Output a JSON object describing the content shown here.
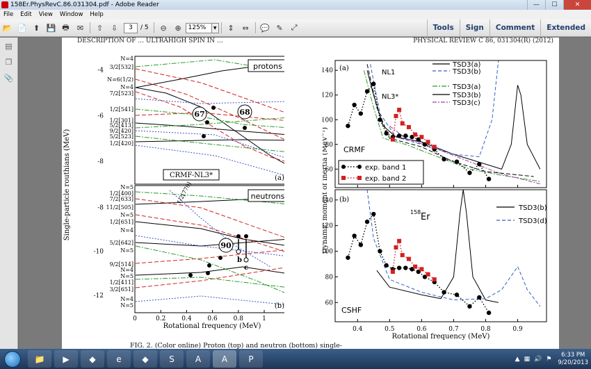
{
  "window": {
    "title": "158Er.PhysRevC.86.031304.pdf - Adobe Reader",
    "min": "—",
    "max": "☐",
    "close": "✕"
  },
  "menu": [
    "File",
    "Edit",
    "View",
    "Window",
    "Help"
  ],
  "toolbar": {
    "page_current": "3",
    "page_total": "/ 5",
    "zoom": "125%",
    "tools": "Tools",
    "sign": "Sign",
    "comment": "Comment",
    "extended": "Extended"
  },
  "document": {
    "header_left": "DESCRIPTION OF ... ULTRAHIGH SPIN IN ...",
    "header_right": "PHYSICAL REVIEW C 86, 031304(R) (2012)",
    "caption": "FIG. 2. (Color online) Proton (top) and neutron (bottom) single-",
    "left": {
      "ylabel": "Single-particle routhians (MeV)",
      "xlabel": "Rotational frequency (MeV)",
      "xticks": [
        "0",
        "0.2",
        "0.4",
        "0.6",
        "0.8",
        "1"
      ],
      "yticks_top": [
        "-4",
        "-6",
        "-8"
      ],
      "yticks_bottom": [
        "-8",
        "-10",
        "-12"
      ],
      "protons_label": "protons",
      "neutrons_label": "neutrons",
      "model_label": "CRMF-NL3*",
      "panel_a": "(a)",
      "panel_b": "(b)",
      "circle_67": "67",
      "circle_68": "68",
      "circle_90": "90",
      "arrow_b": "b",
      "arrow_c": "c",
      "level_labels_top": [
        "N=4",
        "3/2[532]",
        "N=6(1/2)",
        "N=4",
        "7/2[523]",
        "1/2[541]",
        "1/2[301]",
        "5/2[413]",
        "9/2[420]",
        "5/2[523]",
        "1/2[420]"
      ],
      "level_labels_bottom": [
        "N=5",
        "1/2[400]",
        "7/2[633]",
        "11/2[505]",
        "N=5",
        "1/2[651]",
        "N=4",
        "5/2[642]",
        "N=5",
        "9/2[514]",
        "N=4",
        "N=5",
        "1/2[411]",
        "3/2[651]",
        "N=4",
        "N=5"
      ],
      "diag_label": "1/2[770]"
    },
    "right": {
      "ylabel": "Dynamic moment of inertia (MeV⁻¹)",
      "xlabel": "Rotational frequency (MeV)",
      "xticks": [
        "0.4",
        "0.5",
        "0.6",
        "0.7",
        "0.8",
        "0.9"
      ],
      "yticks_top": [
        "140",
        "120",
        "100",
        "80",
        "60"
      ],
      "yticks_bottom": [
        "140",
        "120",
        "100",
        "80",
        "60"
      ],
      "panel_a": "(a)",
      "panel_b": "(b)",
      "nl1": "NL1",
      "nl3": "NL3*",
      "crmf": "CRMF",
      "cshf": "CSHF",
      "er_mass": "158",
      "er_sym": "Er",
      "legend_top": [
        "TSD3(a)",
        "TSD3(b)",
        "TSD3(a)",
        "TSD3(b)",
        "TSD3(c)"
      ],
      "legend_exp": [
        "exp. band 1",
        "exp. band 2"
      ],
      "legend_bottom": [
        "TSD3(b)",
        "TSD3(d)"
      ]
    }
  },
  "chart_data": {
    "type": "scatter",
    "title": "",
    "xlabel": "Rotational frequency (MeV)",
    "ylabel": "Dynamic moment of inertia (MeV⁻¹)",
    "xlim": [
      0.33,
      0.99
    ],
    "ylim": [
      45,
      148
    ],
    "series": [
      {
        "name": "exp. band 1",
        "x": [
          0.37,
          0.39,
          0.41,
          0.43,
          0.45,
          0.47,
          0.49,
          0.51,
          0.53,
          0.55,
          0.57,
          0.59,
          0.61,
          0.64,
          0.67,
          0.71,
          0.75,
          0.78,
          0.81
        ],
        "y": [
          95,
          112,
          105,
          123,
          129,
          100,
          89,
          86,
          87,
          87,
          86,
          84,
          80,
          76,
          68,
          66,
          57,
          64,
          52
        ]
      },
      {
        "name": "exp. band 2",
        "x": [
          0.51,
          0.52,
          0.53,
          0.54,
          0.56,
          0.58,
          0.6,
          0.62,
          0.64
        ],
        "y": [
          84,
          103,
          108,
          97,
          94,
          88,
          86,
          82,
          78
        ]
      }
    ]
  },
  "taskbar": {
    "time": "6:33 PM",
    "date": "9/20/2013"
  }
}
